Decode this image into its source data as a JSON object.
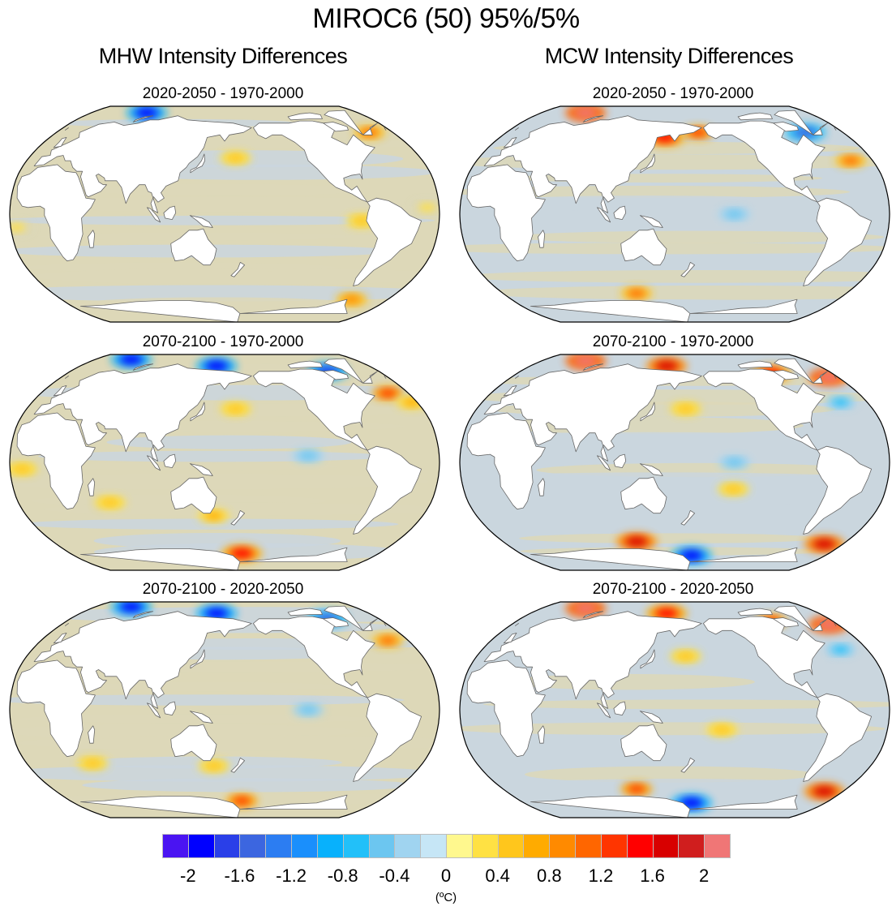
{
  "figure": {
    "title": "MIROC6 (50) 95%/5%",
    "columns": [
      {
        "title": "MHW Intensity Differences"
      },
      {
        "title": "MCW Intensity Differences"
      }
    ]
  },
  "chart_data": {
    "type": "heatmap",
    "title": "MIROC6 (50) 95%/5%",
    "projection": "Robinson (global, Pacific-centered)",
    "variable": "Intensity difference",
    "units": "(ºC)",
    "panels": [
      {
        "id": "mhw-p1",
        "column": "MHW Intensity Differences",
        "subtitle": "2020-2050 - 1970-2000",
        "summary": "mostly near zero (-0.2 to 0.2); weak +0.2 to +0.4 patches in N Pacific, N Atlantic, off Peru; strong negative (-2) in Arctic near Barents/Kara Sea; +1.0 spot off Greenland/Labrador",
        "features": [
          {
            "lon": 55,
            "lat": 80,
            "value": -2.0
          },
          {
            "lon": -45,
            "lat": 62,
            "value": 1.0
          },
          {
            "lon": 170,
            "lat": 42,
            "value": 0.4
          },
          {
            "lon": -85,
            "lat": -5,
            "value": 0.4
          },
          {
            "lon": -30,
            "lat": 5,
            "value": 0.3
          },
          {
            "lon": -60,
            "lat": -65,
            "value": 0.8
          },
          {
            "lon": -15,
            "lat": -10,
            "value": 0.2
          }
        ]
      },
      {
        "id": "mhw-p2",
        "column": "MHW Intensity Differences",
        "subtitle": "2070-2100 - 1970-2000",
        "summary": "strong Arctic cooling (-2); N Atlantic warming up to +1.2; banded +0.4 in subtropics, -0.4 in eastern tropical Pacific",
        "features": [
          {
            "lon": 30,
            "lat": 82,
            "value": -2.0
          },
          {
            "lon": 150,
            "lat": 75,
            "value": -2.0
          },
          {
            "lon": -80,
            "lat": 70,
            "value": -1.8
          },
          {
            "lon": -40,
            "lat": 52,
            "value": 1.2
          },
          {
            "lon": -25,
            "lat": 45,
            "value": 0.6
          },
          {
            "lon": 170,
            "lat": 40,
            "value": 0.5
          },
          {
            "lon": -130,
            "lat": 5,
            "value": -0.6
          },
          {
            "lon": 60,
            "lat": -30,
            "value": 0.5
          },
          {
            "lon": -10,
            "lat": -5,
            "value": 0.5
          },
          {
            "lon": 180,
            "lat": -70,
            "value": 1.4
          },
          {
            "lon": 150,
            "lat": -40,
            "value": 0.6
          }
        ]
      },
      {
        "id": "mhw-p3",
        "column": "MHW Intensity Differences",
        "subtitle": "2070-2100 - 2020-2050",
        "summary": "Arctic cooling (-2); N Atlantic +0.4 to +1.0; eastern equatorial Pacific -0.4 to -0.6; Ross Sea +1.2",
        "features": [
          {
            "lon": 30,
            "lat": 82,
            "value": -2.0
          },
          {
            "lon": 150,
            "lat": 75,
            "value": -2.0
          },
          {
            "lon": -80,
            "lat": 70,
            "value": -1.6
          },
          {
            "lon": -40,
            "lat": 52,
            "value": 1.0
          },
          {
            "lon": -130,
            "lat": 0,
            "value": -0.6
          },
          {
            "lon": 180,
            "lat": -70,
            "value": 1.2
          },
          {
            "lon": 150,
            "lat": -42,
            "value": 0.5
          },
          {
            "lon": 40,
            "lat": -40,
            "value": 0.4
          }
        ]
      },
      {
        "id": "mcw-p1",
        "column": "MCW Intensity Differences",
        "subtitle": "2020-2050 - 1970-2000",
        "summary": "mostly -0.2 to 0.2; Arctic/marginal seas positive up to +2 (Barents, Okhotsk, Bering); -1.6 Labrador Sea; central equatorial Pacific -0.6",
        "features": [
          {
            "lon": 40,
            "lat": 80,
            "value": 2.0
          },
          {
            "lon": 150,
            "lat": 58,
            "value": 1.4
          },
          {
            "lon": -175,
            "lat": 62,
            "value": 1.2
          },
          {
            "lon": -60,
            "lat": 62,
            "value": -1.6
          },
          {
            "lon": -150,
            "lat": 0,
            "value": -0.6
          },
          {
            "lon": -40,
            "lat": 40,
            "value": 1.0
          },
          {
            "lon": 120,
            "lat": -60,
            "value": 1.0
          }
        ]
      },
      {
        "id": "mcw-p2",
        "column": "MCW Intensity Differences",
        "subtitle": "2070-2100 - 1970-2000",
        "summary": "strong Arctic warming (+1.2 to +2); N Atlantic subpolar -0.4 to -0.8; banded +0.4 in Pacific; Southern Ocean +1.6 near Ross/Weddell, -2 near Antarctic coast",
        "features": [
          {
            "lon": 40,
            "lat": 80,
            "value": 2.0
          },
          {
            "lon": 150,
            "lat": 75,
            "value": 1.6
          },
          {
            "lon": -90,
            "lat": 68,
            "value": 1.4
          },
          {
            "lon": -30,
            "lat": 65,
            "value": 2.0
          },
          {
            "lon": -45,
            "lat": 45,
            "value": -0.8
          },
          {
            "lon": 170,
            "lat": 40,
            "value": 0.5
          },
          {
            "lon": -150,
            "lat": 0,
            "value": -0.6
          },
          {
            "lon": -150,
            "lat": -20,
            "value": 0.5
          },
          {
            "lon": 120,
            "lat": -60,
            "value": 1.6
          },
          {
            "lon": 180,
            "lat": -72,
            "value": -2.0
          },
          {
            "lon": -40,
            "lat": -62,
            "value": 1.6
          }
        ]
      },
      {
        "id": "mcw-p3",
        "column": "MCW Intensity Differences",
        "subtitle": "2070-2100 - 2020-2050",
        "summary": "Arctic warming (+1.2 to +2); N Atlantic subpolar -0.4 to -0.8; tropical Pacific +0.4 bands; Weddell Sea +1.6; near Ross Sea -2",
        "features": [
          {
            "lon": 40,
            "lat": 80,
            "value": 2.0
          },
          {
            "lon": 150,
            "lat": 75,
            "value": 1.4
          },
          {
            "lon": -90,
            "lat": 68,
            "value": 1.2
          },
          {
            "lon": -30,
            "lat": 65,
            "value": 2.0
          },
          {
            "lon": -45,
            "lat": 45,
            "value": -0.8
          },
          {
            "lon": 170,
            "lat": 40,
            "value": 0.5
          },
          {
            "lon": -160,
            "lat": -15,
            "value": 0.5
          },
          {
            "lon": 120,
            "lat": -60,
            "value": 1.2
          },
          {
            "lon": 180,
            "lat": -72,
            "value": -2.0
          },
          {
            "lon": -40,
            "lat": -62,
            "value": 1.6
          }
        ]
      }
    ],
    "colorbar": {
      "orientation": "horizontal",
      "placement": "bottom-center",
      "range": [
        -2.2,
        2.2
      ],
      "levels": [
        -2.2,
        -2.0,
        -1.8,
        -1.6,
        -1.4,
        -1.2,
        -1.0,
        -0.8,
        -0.6,
        -0.4,
        -0.2,
        0,
        0.2,
        0.4,
        0.6,
        0.8,
        1.0,
        1.2,
        1.4,
        1.6,
        1.8,
        2.0,
        2.2
      ],
      "colors": [
        "#4a14f2",
        "#0000ff",
        "#2a3fe8",
        "#3c66e0",
        "#2c7df2",
        "#1a8ffc",
        "#08b1fc",
        "#22c0f9",
        "#6cc6f0",
        "#a0d4f0",
        "#c6e6f6",
        "#fff88e",
        "#ffe143",
        "#ffc61c",
        "#ffab00",
        "#ff8a00",
        "#ff6600",
        "#ff3500",
        "#ff0000",
        "#d80000",
        "#d01e1e",
        "#f07676"
      ],
      "tick_labels": [
        "-2",
        "-1.6",
        "-1.2",
        "-0.8",
        "-0.4",
        "0",
        "0.4",
        "0.8",
        "1.2",
        "1.6",
        "2"
      ],
      "tick_values": [
        -2,
        -1.6,
        -1.2,
        -0.8,
        -0.4,
        0,
        0.4,
        0.8,
        1.2,
        1.6,
        2
      ],
      "units": "(ºC)"
    },
    "neutral_fill_colors": {
      "slightly_negative": "#cad6de",
      "slightly_positive": "#ddd8b8",
      "land": "#ffffff",
      "coastline": "#666666"
    }
  }
}
